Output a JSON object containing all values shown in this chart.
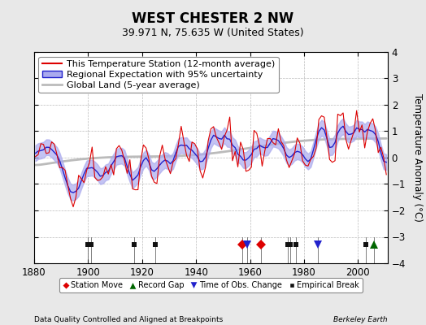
{
  "title": "WEST CHESTER 2 NW",
  "subtitle": "39.971 N, 75.635 W (United States)",
  "ylabel": "Temperature Anomaly (°C)",
  "xlabel_left": "Data Quality Controlled and Aligned at Breakpoints",
  "xlabel_right": "Berkeley Earth",
  "year_start": 1880,
  "year_end": 2011,
  "ylim": [
    -4,
    4
  ],
  "yticks": [
    -4,
    -3,
    -2,
    -1,
    0,
    1,
    2,
    3,
    4
  ],
  "xticks": [
    1880,
    1900,
    1920,
    1940,
    1960,
    1980,
    2000
  ],
  "background_color": "#e8e8e8",
  "plot_bg_color": "#ffffff",
  "grid_color": "#bbbbbb",
  "station_color": "#dd0000",
  "regional_line_color": "#2222cc",
  "regional_fill_color": "#aaaaee",
  "global_color": "#bbbbbb",
  "station_move_years": [
    1957,
    1964
  ],
  "station_move_color": "#dd0000",
  "record_gap_years": [
    2006
  ],
  "record_gap_color": "#006600",
  "tobs_change_years": [
    1959,
    1985
  ],
  "tobs_change_color": "#2222cc",
  "empirical_break_years": [
    1900,
    1901,
    1917,
    1925,
    1974,
    1975,
    1977,
    2003
  ],
  "empirical_break_color": "#111111",
  "seed": 42,
  "legend_fontsize": 8,
  "title_fontsize": 12,
  "subtitle_fontsize": 9
}
